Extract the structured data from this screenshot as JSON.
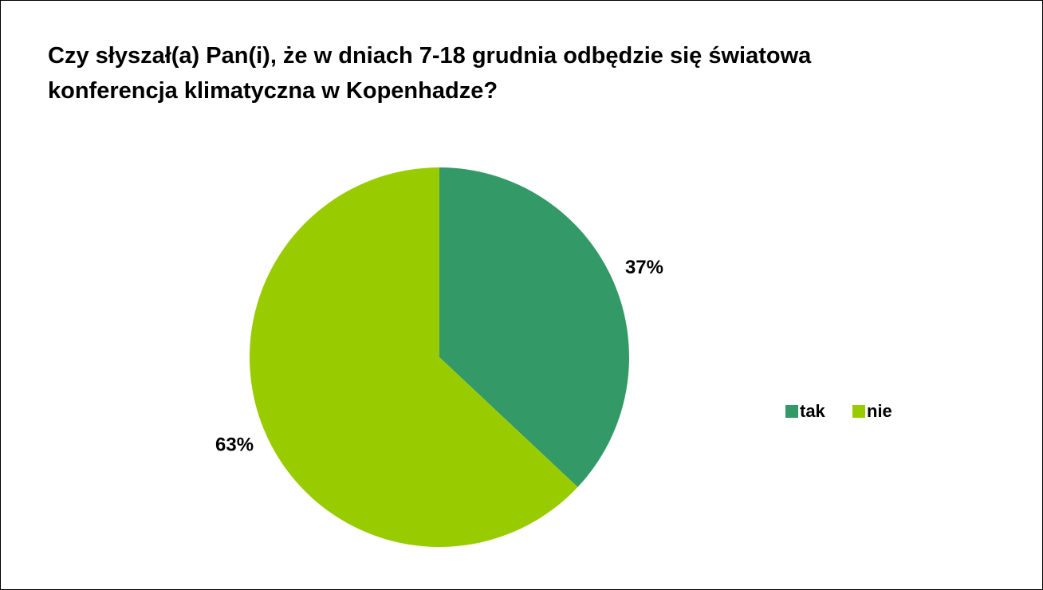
{
  "chart_data": {
    "type": "pie",
    "title": "Czy słyszał(a) Pan(i), że w dniach 7-18 grudnia odbędzie się światowa konferencja klimatyczna w Kopenhadze?",
    "categories": [
      "tak",
      "nie"
    ],
    "values": [
      37,
      63
    ],
    "value_labels": [
      "37%",
      "63%"
    ],
    "colors": [
      "#339966",
      "#99cc00"
    ],
    "legend": "right"
  }
}
